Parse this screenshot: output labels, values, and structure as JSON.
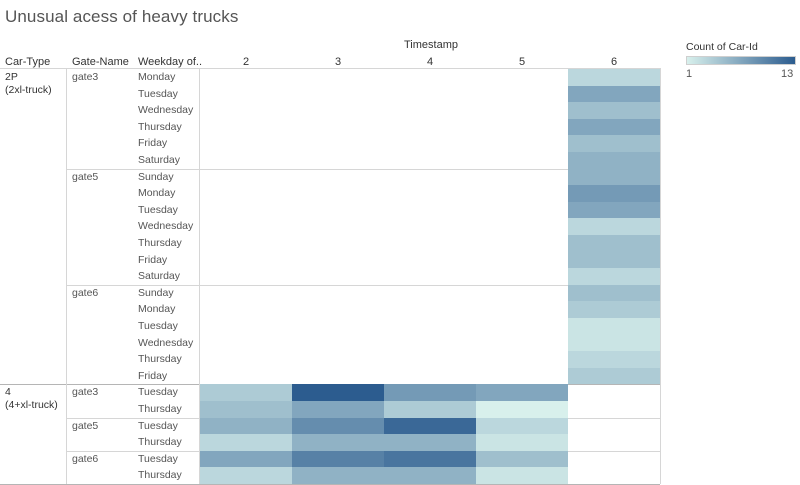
{
  "chart_data": {
    "type": "heatmap",
    "title": "Unusual acess of heavy trucks",
    "column_axis_title": "Timestamp",
    "columns": [
      "2",
      "3",
      "4",
      "5",
      "6"
    ],
    "row_headers": [
      "Car-Type",
      "Gate-Name",
      "Weekday of.."
    ],
    "legend": {
      "title": "Count of Car-Id",
      "min": 1,
      "max": 13,
      "min_label": "1",
      "max_label": "13"
    },
    "color_range": [
      "#d8f0ec",
      "#2c5c8f"
    ],
    "groups": [
      {
        "car_type": "2P\n(2xl-truck)",
        "gates": [
          {
            "gate": "gate3",
            "rows": [
              {
                "weekday": "Monday",
                "values": [
                  null,
                  null,
                  null,
                  null,
                  3
                ]
              },
              {
                "weekday": "Tuesday",
                "values": [
                  null,
                  null,
                  null,
                  null,
                  7
                ]
              },
              {
                "weekday": "Wednesday",
                "values": [
                  null,
                  null,
                  null,
                  null,
                  5
                ]
              },
              {
                "weekday": "Thursday",
                "values": [
                  null,
                  null,
                  null,
                  null,
                  7
                ]
              },
              {
                "weekday": "Friday",
                "values": [
                  null,
                  null,
                  null,
                  null,
                  5
                ]
              },
              {
                "weekday": "Saturday",
                "values": [
                  null,
                  null,
                  null,
                  null,
                  6
                ]
              }
            ]
          },
          {
            "gate": "gate5",
            "rows": [
              {
                "weekday": "Sunday",
                "values": [
                  null,
                  null,
                  null,
                  null,
                  6
                ]
              },
              {
                "weekday": "Monday",
                "values": [
                  null,
                  null,
                  null,
                  null,
                  8
                ]
              },
              {
                "weekday": "Tuesday",
                "values": [
                  null,
                  null,
                  null,
                  null,
                  7
                ]
              },
              {
                "weekday": "Wednesday",
                "values": [
                  null,
                  null,
                  null,
                  null,
                  3
                ]
              },
              {
                "weekday": "Thursday",
                "values": [
                  null,
                  null,
                  null,
                  null,
                  5
                ]
              },
              {
                "weekday": "Friday",
                "values": [
                  null,
                  null,
                  null,
                  null,
                  5
                ]
              },
              {
                "weekday": "Saturday",
                "values": [
                  null,
                  null,
                  null,
                  null,
                  3
                ]
              }
            ]
          },
          {
            "gate": "gate6",
            "rows": [
              {
                "weekday": "Sunday",
                "values": [
                  null,
                  null,
                  null,
                  null,
                  5
                ]
              },
              {
                "weekday": "Monday",
                "values": [
                  null,
                  null,
                  null,
                  null,
                  4
                ]
              },
              {
                "weekday": "Tuesday",
                "values": [
                  null,
                  null,
                  null,
                  null,
                  2
                ]
              },
              {
                "weekday": "Wednesday",
                "values": [
                  null,
                  null,
                  null,
                  null,
                  2
                ]
              },
              {
                "weekday": "Thursday",
                "values": [
                  null,
                  null,
                  null,
                  null,
                  3
                ]
              },
              {
                "weekday": "Friday",
                "values": [
                  null,
                  null,
                  null,
                  null,
                  4
                ]
              }
            ]
          }
        ]
      },
      {
        "car_type": "4\n(4+xl-truck)",
        "gates": [
          {
            "gate": "gate3",
            "rows": [
              {
                "weekday": "Tuesday",
                "values": [
                  4,
                  13,
                  8,
                  7,
                  null
                ]
              },
              {
                "weekday": "Thursday",
                "values": [
                  5,
                  7,
                  4,
                  1,
                  null
                ]
              }
            ]
          },
          {
            "gate": "gate5",
            "rows": [
              {
                "weekday": "Tuesday",
                "values": [
                  6,
                  9,
                  12,
                  3,
                  null
                ]
              },
              {
                "weekday": "Thursday",
                "values": [
                  3,
                  6,
                  6,
                  2,
                  null
                ]
              }
            ]
          },
          {
            "gate": "gate6",
            "rows": [
              {
                "weekday": "Tuesday",
                "values": [
                  7,
                  10,
                  11,
                  5,
                  null
                ]
              },
              {
                "weekday": "Thursday",
                "values": [
                  3,
                  6,
                  6,
                  2,
                  null
                ]
              }
            ]
          }
        ]
      }
    ]
  }
}
